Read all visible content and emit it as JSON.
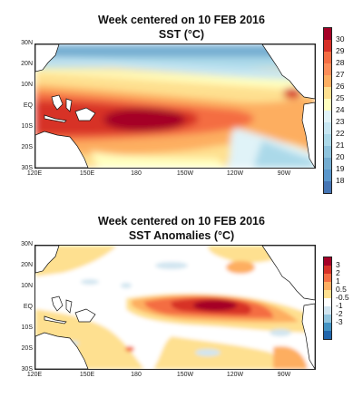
{
  "panels": [
    {
      "title": "Week centered on 10 FEB 2016",
      "subtitle": "SST (°C)",
      "lat_labels": [
        "30N",
        "20N",
        "10N",
        "EQ",
        "10S",
        "20S",
        "30S"
      ],
      "lon_labels": [
        "120E",
        "150E",
        "180",
        "150W",
        "120W",
        "90W"
      ],
      "colorbar": {
        "labels": [
          "30",
          "29",
          "28",
          "27",
          "26",
          "25",
          "24",
          "23",
          "22",
          "21",
          "20",
          "19",
          "18"
        ],
        "colors": [
          "#a50026",
          "#d73027",
          "#f46d43",
          "#fc8d59",
          "#fdae61",
          "#fee090",
          "#ffffbf",
          "#e0f3f8",
          "#c6e6f2",
          "#abd9e9",
          "#8ec4de",
          "#74add1",
          "#5a97cc",
          "#4575b4"
        ]
      }
    },
    {
      "title": "Week centered on 10 FEB 2016",
      "subtitle": "SST Anomalies (°C)",
      "lat_labels": [
        "30N",
        "20N",
        "10N",
        "EQ",
        "10S",
        "20S",
        "30S"
      ],
      "lon_labels": [
        "120E",
        "150E",
        "180",
        "150W",
        "120W",
        "90W"
      ],
      "colorbar": {
        "labels": [
          "3",
          "2",
          "1",
          "0.5",
          "-0.5",
          "-1",
          "-2",
          "-3"
        ],
        "colors": [
          "#a50026",
          "#d73027",
          "#f46d43",
          "#fdae61",
          "#fee090",
          "#ffffff",
          "#d1e5f0",
          "#92c5de",
          "#4393c3",
          "#2166ac"
        ]
      }
    }
  ]
}
